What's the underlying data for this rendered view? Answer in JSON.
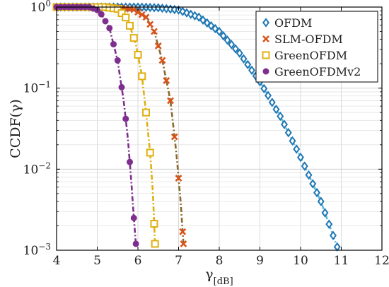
{
  "chart_data": {
    "type": "line",
    "xlabel": "γ[dB]",
    "ylabel": "CCDF(γ)",
    "xlim": [
      4,
      12
    ],
    "ylim": [
      0.001,
      1
    ],
    "yscale": "log",
    "grid": true,
    "legend_position": "top-right",
    "x_ticks": [
      "4",
      "5",
      "6",
      "7",
      "8",
      "9",
      "10",
      "11",
      "12"
    ],
    "y_ticks": [
      {
        "value": 1,
        "label": "10^0"
      },
      {
        "value": 0.1,
        "label": "10^-1"
      },
      {
        "value": 0.01,
        "label": "10^-2"
      },
      {
        "value": 0.001,
        "label": "10^-3"
      }
    ],
    "series": [
      {
        "name": "OFDM",
        "color": "#1f77b4",
        "marker": "diamond",
        "line_color": "#5db8d8",
        "points": [
          [
            4.0,
            1.0
          ],
          [
            5.0,
            1.0
          ],
          [
            6.0,
            1.0
          ],
          [
            6.5,
            0.98
          ],
          [
            7.0,
            0.92
          ],
          [
            7.5,
            0.75
          ],
          [
            8.0,
            0.5
          ],
          [
            8.5,
            0.27
          ],
          [
            9.0,
            0.12
          ],
          [
            9.5,
            0.045
          ],
          [
            10.0,
            0.014
          ],
          [
            10.5,
            0.004
          ],
          [
            10.9,
            0.0011
          ]
        ]
      },
      {
        "name": "SLM-OFDM",
        "color": "#d95319",
        "marker": "x",
        "line_color": "#8b6a2a",
        "points": [
          [
            4.0,
            1.0
          ],
          [
            5.5,
            0.99
          ],
          [
            5.9,
            0.93
          ],
          [
            6.2,
            0.75
          ],
          [
            6.4,
            0.5
          ],
          [
            6.6,
            0.22
          ],
          [
            6.8,
            0.07
          ],
          [
            6.95,
            0.015
          ],
          [
            7.05,
            0.004
          ],
          [
            7.12,
            0.0012
          ]
        ]
      },
      {
        "name": "GreenOFDM",
        "color": "#e0b010",
        "marker": "square",
        "line_color": "#e0b010",
        "points": [
          [
            4.0,
            1.0
          ],
          [
            5.2,
            1.0
          ],
          [
            5.5,
            0.95
          ],
          [
            5.75,
            0.7
          ],
          [
            5.95,
            0.35
          ],
          [
            6.1,
            0.14
          ],
          [
            6.2,
            0.05
          ],
          [
            6.3,
            0.016
          ],
          [
            6.37,
            0.005
          ],
          [
            6.42,
            0.0012
          ]
        ]
      },
      {
        "name": "GreenOFDMv2",
        "color": "#7e2f8e",
        "marker": "circle",
        "line_color": "#7e2f8e",
        "points": [
          [
            4.0,
            1.0
          ],
          [
            4.8,
            1.0
          ],
          [
            5.05,
            0.9
          ],
          [
            5.3,
            0.55
          ],
          [
            5.5,
            0.22
          ],
          [
            5.65,
            0.07
          ],
          [
            5.75,
            0.025
          ],
          [
            5.83,
            0.008
          ],
          [
            5.9,
            0.0025
          ],
          [
            5.95,
            0.0012
          ]
        ]
      }
    ]
  }
}
